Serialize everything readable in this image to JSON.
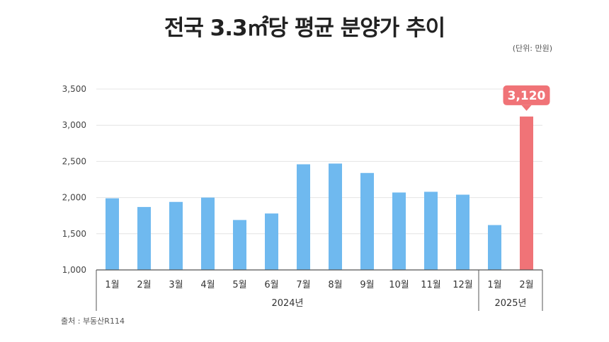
{
  "title": "전국 3.3㎡당 평균 분양가 추이",
  "unit": "(단위: 만원)",
  "source": "출처 : 부동산R114",
  "colors": {
    "bar": "#6fb9ef",
    "highlight": "#f07377",
    "grid": "#e4e4e4",
    "axis": "#555555"
  },
  "chart_data": {
    "type": "bar",
    "categories": [
      "1월",
      "2월",
      "3월",
      "4월",
      "5월",
      "6월",
      "7월",
      "8월",
      "9월",
      "10월",
      "11월",
      "12월",
      "1월",
      "2월"
    ],
    "values": [
      1990,
      1870,
      1940,
      2000,
      1690,
      1780,
      2460,
      2470,
      2340,
      2070,
      2080,
      2040,
      1620,
      3120
    ],
    "groups": [
      {
        "label": "2024년",
        "count": 12
      },
      {
        "label": "2025년",
        "count": 2
      }
    ],
    "ylim": [
      1000,
      3500
    ],
    "yticks": [
      "1,000",
      "1,500",
      "2,000",
      "2,500",
      "3,000",
      "3,500"
    ],
    "ytick_values": [
      1000,
      1500,
      2000,
      2500,
      3000,
      3500
    ],
    "highlight_index": 13,
    "highlight_label": "3,120",
    "grid": true
  }
}
